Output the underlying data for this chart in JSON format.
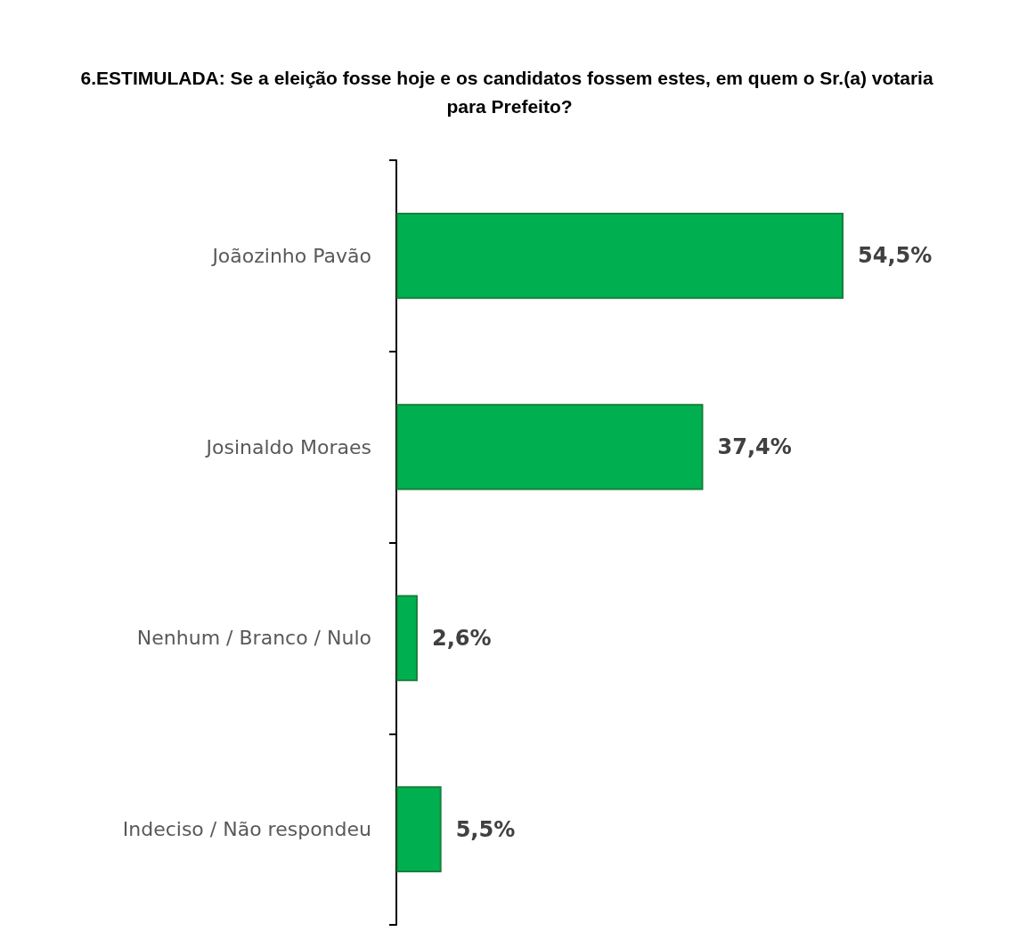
{
  "chart_data": {
    "type": "bar",
    "orientation": "horizontal",
    "title": "6.ESTIMULADA: Se a eleição fosse hoje e os candidatos fossem estes, em quem o Sr.(a) votaria para Prefeito?",
    "categories": [
      "Joãozinho Pavão",
      "Josinaldo Moraes",
      "Nenhum / Branco / Nulo",
      "Indeciso / Não respondeu"
    ],
    "values": [
      54.5,
      37.4,
      2.6,
      5.5
    ],
    "value_labels": [
      "54,5%",
      "37,4%",
      "2,6%",
      "5,5%"
    ],
    "color": "#00b050",
    "grid": false
  }
}
